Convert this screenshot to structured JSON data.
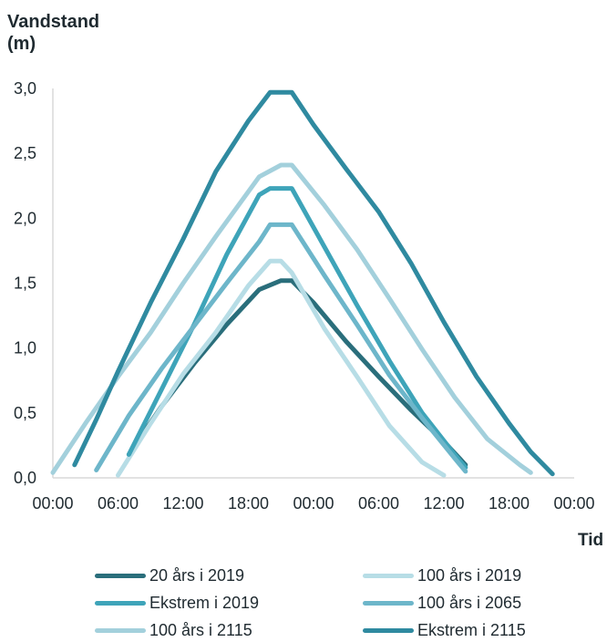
{
  "chart_data": {
    "type": "line",
    "ylabel_line1": "Vandstand",
    "ylabel_line2": "(m)",
    "xlabel": "Tid",
    "ylim": [
      0,
      3.0
    ],
    "yticks": [
      "0,0",
      "0,5",
      "1,0",
      "1,5",
      "2,0",
      "2,5",
      "3,0"
    ],
    "yticks_values": [
      0,
      0.5,
      1.0,
      1.5,
      2.0,
      2.5,
      3.0
    ],
    "xlim": [
      0,
      48
    ],
    "xticks": [
      "00:00",
      "06:00",
      "12:00",
      "18:00",
      "00:00",
      "06:00",
      "12:00",
      "18:00",
      "00:00"
    ],
    "xticks_values": [
      0,
      6,
      12,
      18,
      24,
      30,
      36,
      42,
      48
    ],
    "grid": false,
    "legend_position": "bottom",
    "series": [
      {
        "name": "20 års i 2019",
        "color": "#2a6e7b",
        "x": [
          7,
          10,
          13,
          16,
          19,
          21,
          22,
          24,
          27,
          30,
          33,
          36,
          38
        ],
        "y": [
          0.18,
          0.55,
          0.88,
          1.18,
          1.45,
          1.52,
          1.52,
          1.35,
          1.05,
          0.78,
          0.52,
          0.28,
          0.1
        ]
      },
      {
        "name": "100 års i 2019",
        "color": "#b7dde6",
        "x": [
          6,
          9,
          12,
          15,
          18,
          20,
          21,
          22,
          25,
          28,
          31,
          34,
          36
        ],
        "y": [
          0.02,
          0.42,
          0.8,
          1.12,
          1.48,
          1.67,
          1.67,
          1.58,
          1.15,
          0.78,
          0.4,
          0.12,
          0.02
        ]
      },
      {
        "name": "Ekstrem i 2019",
        "color": "#3ea4b9",
        "x": [
          7,
          10,
          13,
          16,
          19,
          20,
          22,
          25,
          28,
          31,
          34,
          37,
          38
        ],
        "y": [
          0.18,
          0.68,
          1.18,
          1.72,
          2.18,
          2.23,
          2.23,
          1.78,
          1.33,
          0.9,
          0.5,
          0.18,
          0.08
        ]
      },
      {
        "name": "100 års i 2065",
        "color": "#6db6ca",
        "x": [
          4,
          7,
          10,
          13,
          16,
          19,
          20,
          22,
          25,
          28,
          31,
          34,
          37,
          38
        ],
        "y": [
          0.06,
          0.48,
          0.84,
          1.17,
          1.5,
          1.82,
          1.95,
          1.95,
          1.56,
          1.18,
          0.79,
          0.46,
          0.15,
          0.05
        ]
      },
      {
        "name": "100 års i 2115",
        "color": "#a3d0dc",
        "x": [
          0,
          3,
          6,
          9,
          12,
          15,
          19,
          21,
          22,
          25,
          28,
          31,
          34,
          37,
          40,
          43,
          44
        ],
        "y": [
          0.04,
          0.42,
          0.78,
          1.12,
          1.5,
          1.86,
          2.32,
          2.41,
          2.41,
          2.1,
          1.76,
          1.38,
          0.99,
          0.62,
          0.3,
          0.1,
          0.04
        ]
      },
      {
        "name": "Ekstrem i 2115",
        "color": "#2f8aa0",
        "x": [
          2,
          4,
          6,
          9,
          12,
          15,
          18,
          20,
          22,
          24,
          27,
          30,
          33,
          36,
          39,
          42,
          44,
          46
        ],
        "y": [
          0.1,
          0.45,
          0.82,
          1.35,
          1.84,
          2.36,
          2.75,
          2.97,
          2.97,
          2.72,
          2.38,
          2.05,
          1.65,
          1.2,
          0.78,
          0.42,
          0.2,
          0.03
        ]
      }
    ]
  }
}
